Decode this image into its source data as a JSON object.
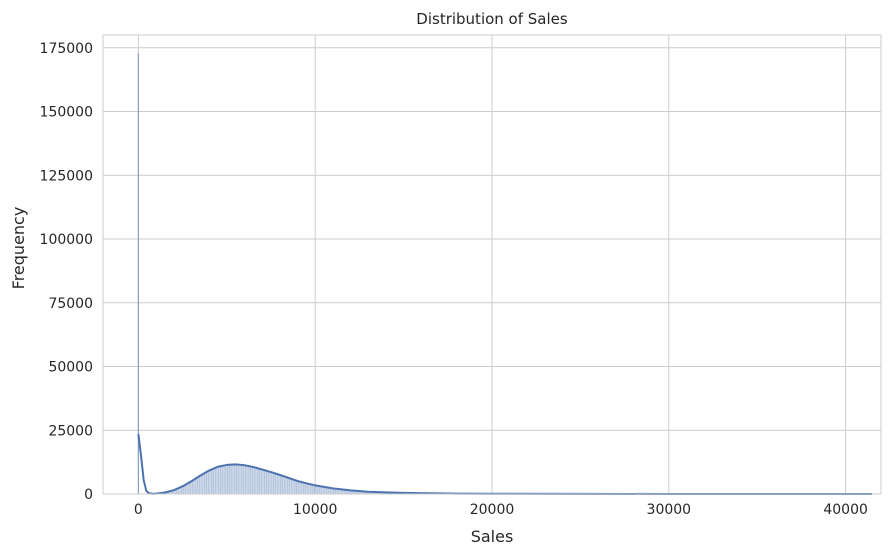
{
  "chart_data": {
    "type": "histogram",
    "title": "Distribution of Sales",
    "xlabel": "Sales",
    "ylabel": "Frequency",
    "xlim": [
      -2000,
      42000
    ],
    "ylim": [
      0,
      180000
    ],
    "x_ticks": [
      0,
      10000,
      20000,
      30000,
      40000
    ],
    "y_ticks": [
      0,
      25000,
      50000,
      75000,
      100000,
      125000,
      150000,
      175000
    ],
    "grid": true,
    "style": "seaborn-whitegrid",
    "histogram": {
      "color": "#4c72b0",
      "alpha": 0.4,
      "zero_bin": {
        "x": 0,
        "count": 172871
      },
      "bins_shape": "approximately follows KDE curve, peak ~11500 near Sales 5600, long right tail to ~41500"
    },
    "kde": {
      "color": "#4c72b0",
      "x": [
        0,
        150,
        300,
        450,
        600,
        800,
        1000,
        1500,
        2000,
        2500,
        3000,
        3500,
        4000,
        4500,
        5000,
        5500,
        6000,
        6500,
        7000,
        7500,
        8000,
        8500,
        9000,
        9500,
        10000,
        11000,
        12000,
        13000,
        14000,
        15000,
        16000,
        17000,
        18000,
        20000,
        25000,
        30000,
        35000,
        41500
      ],
      "y": [
        23500,
        15000,
        5500,
        1200,
        300,
        100,
        150,
        600,
        1500,
        3000,
        5000,
        7200,
        9200,
        10700,
        11400,
        11600,
        11300,
        10600,
        9600,
        8600,
        7500,
        6300,
        5100,
        4200,
        3400,
        2200,
        1400,
        900,
        650,
        450,
        320,
        230,
        170,
        100,
        40,
        15,
        5,
        0
      ]
    }
  }
}
